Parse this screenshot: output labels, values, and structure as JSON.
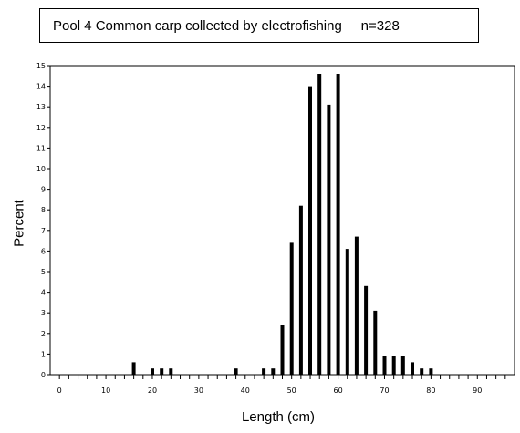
{
  "chart_data": {
    "type": "bar",
    "title": "Pool 4 Common carp collected by electrofishing     n=328",
    "xlabel": "Length (cm)",
    "ylabel": "Percent",
    "xlim": [
      -2,
      98
    ],
    "ylim": [
      0,
      15
    ],
    "x_ticks": [
      0,
      10,
      20,
      30,
      40,
      50,
      60,
      70,
      80,
      90
    ],
    "y_ticks": [
      0,
      1,
      2,
      3,
      4,
      5,
      6,
      7,
      8,
      9,
      10,
      11,
      12,
      13,
      14,
      15
    ],
    "grid": false,
    "x": [
      16,
      20,
      22,
      24,
      38,
      44,
      46,
      48,
      50,
      52,
      54,
      56,
      58,
      60,
      62,
      64,
      66,
      68,
      70,
      72,
      74,
      76,
      78,
      80
    ],
    "values": [
      0.6,
      0.3,
      0.3,
      0.3,
      0.3,
      0.3,
      0.3,
      2.4,
      6.4,
      8.2,
      14.0,
      14.6,
      13.1,
      14.6,
      6.1,
      6.7,
      4.3,
      3.1,
      0.9,
      0.9,
      0.9,
      0.6,
      0.3,
      0.3
    ],
    "bar_color": "#000000"
  }
}
